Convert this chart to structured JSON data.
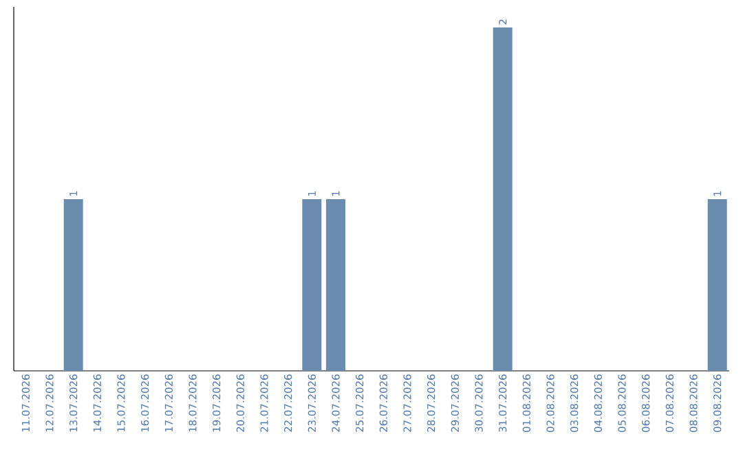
{
  "chart_data": {
    "type": "bar",
    "categories": [
      "11.07.2026",
      "12.07.2026",
      "13.07.2026",
      "14.07.2026",
      "15.07.2026",
      "16.07.2026",
      "17.07.2026",
      "18.07.2026",
      "19.07.2026",
      "20.07.2026",
      "21.07.2026",
      "22.07.2026",
      "23.07.2026",
      "24.07.2026",
      "25.07.2026",
      "26.07.2026",
      "27.07.2026",
      "28.07.2026",
      "29.07.2026",
      "30.07.2026",
      "31.07.2026",
      "01.08.2026",
      "02.08.2026",
      "03.08.2026",
      "04.08.2026",
      "05.08.2026",
      "06.08.2026",
      "07.08.2026",
      "08.08.2026",
      "09.08.2026"
    ],
    "values": [
      0,
      0,
      1,
      0,
      0,
      0,
      0,
      0,
      0,
      0,
      0,
      0,
      1,
      1,
      0,
      0,
      0,
      0,
      0,
      0,
      2,
      0,
      0,
      0,
      0,
      0,
      0,
      0,
      0,
      1
    ],
    "value_labels": [
      null,
      null,
      "1",
      null,
      null,
      null,
      null,
      null,
      null,
      null,
      null,
      null,
      "1",
      "1",
      null,
      null,
      null,
      null,
      null,
      null,
      "2",
      null,
      null,
      null,
      null,
      null,
      null,
      null,
      null,
      "1"
    ],
    "color": "#6a8caf"
  }
}
